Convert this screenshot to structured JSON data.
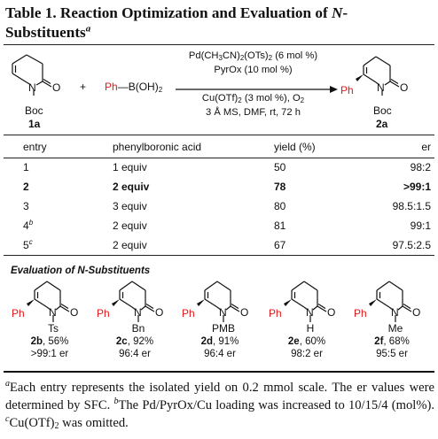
{
  "title": {
    "prefix": "Table 1. Reaction Optimization and Evaluation of ",
    "n": "N",
    "suffix": "-Substituents",
    "note": "a"
  },
  "scheme": {
    "sm_n": "N",
    "sm_o": "O",
    "sm_boc": "Boc",
    "sm_label": "1a",
    "plus": "+",
    "reagent_ph": "Ph",
    "reagent_rest": "B(OH)",
    "reagent_sub": "2",
    "cond_line1_a": "Pd(CH",
    "cond_line1_b": "3",
    "cond_line1_c": "CN)",
    "cond_line1_d": "2",
    "cond_line1_e": "(OTs)",
    "cond_line1_f": "2",
    "cond_line1_g": " (6 mol %)",
    "cond_line2": "PyrOx (10 mol %)",
    "cond_line3_a": "Cu(OTf)",
    "cond_line3_b": "2",
    "cond_line3_c": " (3 mol %), O",
    "cond_line3_d": "2",
    "cond_line4": "3 Å MS, DMF, rt, 72 h",
    "prod_ph": "Ph",
    "prod_n": "N",
    "prod_o": "O",
    "prod_boc": "Boc",
    "prod_label": "2a"
  },
  "table": {
    "headers": [
      "entry",
      "phenylboronic acid",
      "yield (%)",
      "er"
    ],
    "rows": [
      {
        "entry": "1",
        "sup": "",
        "acid": "1 equiv",
        "yield": "50",
        "er": "98:2",
        "bold": false
      },
      {
        "entry": "2",
        "sup": "",
        "acid": "2 equiv",
        "yield": "78",
        "er": ">99:1",
        "bold": true
      },
      {
        "entry": "3",
        "sup": "",
        "acid": "3 equiv",
        "yield": "80",
        "er": "98.5:1.5",
        "bold": false
      },
      {
        "entry": "4",
        "sup": "b",
        "acid": "2 equiv",
        "yield": "81",
        "er": "99:1",
        "bold": false
      },
      {
        "entry": "5",
        "sup": "c",
        "acid": "2 equiv",
        "yield": "67",
        "er": "97.5:2.5",
        "bold": false
      }
    ]
  },
  "section_title": "Evaluation of N-Substituents",
  "substrates": [
    {
      "ph": "Ph",
      "n": "N",
      "o": "O",
      "sub": "Ts",
      "label": "2b",
      "yield": ", 56%",
      "er": ">99:1 er"
    },
    {
      "ph": "Ph",
      "n": "N",
      "o": "O",
      "sub": "Bn",
      "label": "2c",
      "yield": ", 92%",
      "er": "96:4 er"
    },
    {
      "ph": "Ph",
      "n": "N",
      "o": "O",
      "sub": "PMB",
      "label": "2d",
      "yield": ", 91%",
      "er": "96:4 er"
    },
    {
      "ph": "Ph",
      "n": "N",
      "o": "O",
      "sub": "H",
      "label": "2e",
      "yield": ", 60%",
      "er": "98:2 er"
    },
    {
      "ph": "Ph",
      "n": "N",
      "o": "O",
      "sub": "Me",
      "label": "2f",
      "yield": ", 68%",
      "er": "95:5 er"
    }
  ],
  "footnotes": {
    "a_mark": "a",
    "a_text": "Each entry represents the isolated yield on 0.2 mmol scale. The er values were determined by SFC. ",
    "b_mark": "b",
    "b_text": "The Pd/PyrOx/Cu loading was increased to 10/15/4 (mol%). ",
    "c_mark": "c",
    "c_text_a": "Cu(OTf)",
    "c_text_sub": "2",
    "c_text_b": " was omitted."
  },
  "colors": {
    "phenyl": "#e0191b",
    "text": "#111111"
  }
}
